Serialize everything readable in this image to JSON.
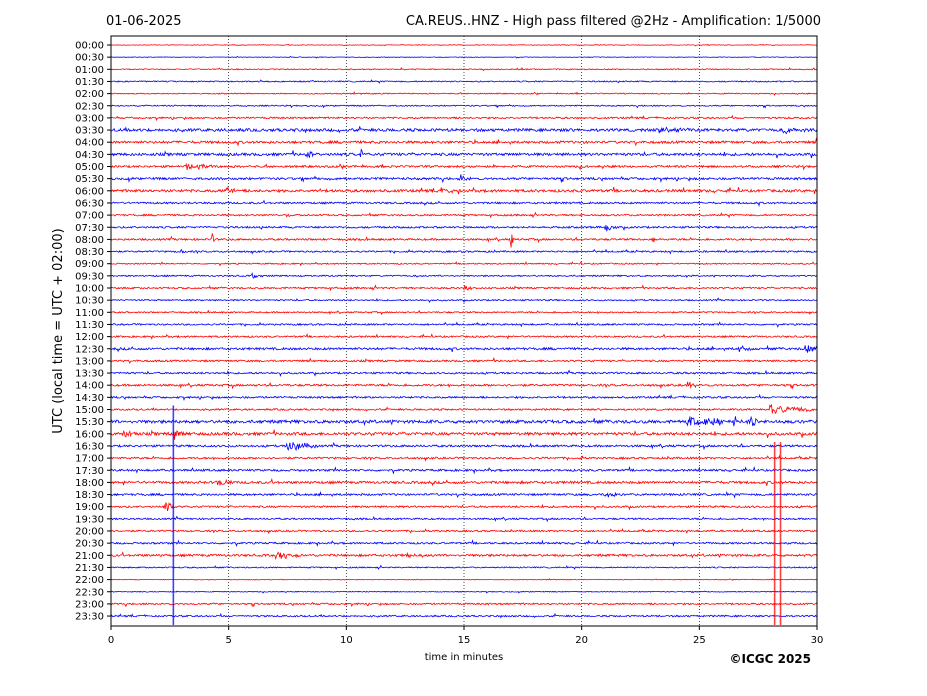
{
  "header": {
    "date": "01-06-2025",
    "title": "CA.REUS..HNZ - High pass filtered @2Hz - Amplification: 1/5000"
  },
  "footer": {
    "copyright": "©ICGC 2025"
  },
  "chart_data": {
    "type": "line",
    "xlabel": "time in minutes",
    "ylabel": "UTC (local time = UTC + 02:00)",
    "xlim": [
      0,
      30
    ],
    "xticks": [
      0,
      5,
      10,
      15,
      20,
      25,
      30
    ],
    "grid": "vertical dotted lines at each 5 minutes",
    "row_labels": [
      "00:00",
      "00:30",
      "01:00",
      "01:30",
      "02:00",
      "02:30",
      "03:00",
      "03:30",
      "04:00",
      "04:30",
      "05:00",
      "05:30",
      "06:00",
      "06:30",
      "07:00",
      "07:30",
      "08:00",
      "08:30",
      "09:00",
      "09:30",
      "10:00",
      "10:30",
      "11:00",
      "11:30",
      "12:00",
      "12:30",
      "13:00",
      "13:30",
      "14:00",
      "14:30",
      "15:00",
      "15:30",
      "16:00",
      "16:30",
      "17:00",
      "17:30",
      "18:00",
      "18:30",
      "19:00",
      "19:30",
      "20:00",
      "20:30",
      "21:00",
      "21:30",
      "22:00",
      "22:30",
      "23:00",
      "23:30"
    ],
    "colors": {
      "odd_rows": "#ff0000",
      "even_rows": "#0000ff"
    },
    "row_noise": [
      0.3,
      0.3,
      0.5,
      0.6,
      0.5,
      0.6,
      0.8,
      1.4,
      1.2,
      1.3,
      1.0,
      1.1,
      1.3,
      0.9,
      0.8,
      0.9,
      0.9,
      0.8,
      0.6,
      0.7,
      0.8,
      0.7,
      0.7,
      0.8,
      0.8,
      1.1,
      0.9,
      0.9,
      1.0,
      0.9,
      0.8,
      1.5,
      1.4,
      1.0,
      0.9,
      1.0,
      1.2,
      1.0,
      0.9,
      0.8,
      0.8,
      0.9,
      1.1,
      0.6,
      0.3,
      0.4,
      0.8,
      0.8
    ],
    "events": [
      {
        "row": "03:30",
        "minute": 23.3,
        "amp": 4,
        "dur": 1.2
      },
      {
        "row": "03:30",
        "minute": 28.6,
        "amp": 3,
        "dur": 1.3
      },
      {
        "row": "04:30",
        "minute": 8.3,
        "amp": 4,
        "dur": 0.5
      },
      {
        "row": "04:30",
        "minute": 10.6,
        "amp": 5,
        "dur": 0.2
      },
      {
        "row": "05:00",
        "minute": 3.2,
        "amp": 3,
        "dur": 1.5
      },
      {
        "row": "05:30",
        "minute": 14.8,
        "amp": 4,
        "dur": 0.6
      },
      {
        "row": "06:00",
        "minute": 4.9,
        "amp": 4,
        "dur": 0.6
      },
      {
        "row": "06:00",
        "minute": 14.0,
        "amp": 4,
        "dur": 0.5
      },
      {
        "row": "07:00",
        "minute": 7.5,
        "amp": 3,
        "dur": 0.3
      },
      {
        "row": "07:30",
        "minute": 21.0,
        "amp": 4,
        "dur": 0.5
      },
      {
        "row": "08:00",
        "minute": 17.0,
        "amp": 10,
        "dur": 0.1
      },
      {
        "row": "08:00",
        "minute": 4.3,
        "amp": 8,
        "dur": 0.1
      },
      {
        "row": "08:00",
        "minute": 23.0,
        "amp": 3,
        "dur": 0.3
      },
      {
        "row": "08:30",
        "minute": 2.9,
        "amp": 3,
        "dur": 0.3
      },
      {
        "row": "09:30",
        "minute": 6.0,
        "amp": 3,
        "dur": 0.5
      },
      {
        "row": "10:00",
        "minute": 15.0,
        "amp": 3,
        "dur": 0.5
      },
      {
        "row": "12:30",
        "minute": 26.7,
        "amp": 4,
        "dur": 0.5
      },
      {
        "row": "12:30",
        "minute": 29.5,
        "amp": 5,
        "dur": 0.5
      },
      {
        "row": "14:00",
        "minute": 24.5,
        "amp": 3,
        "dur": 0.5
      },
      {
        "row": "15:00",
        "minute": 28.0,
        "amp": 5,
        "dur": 2.0
      },
      {
        "row": "15:30",
        "minute": 24.5,
        "amp": 5,
        "dur": 3.0
      },
      {
        "row": "15:30",
        "minute": 27.2,
        "amp": 9,
        "dur": 0.3
      },
      {
        "row": "16:00",
        "minute": 0.5,
        "amp": 4,
        "dur": 0.6
      },
      {
        "row": "16:00",
        "minute": 2.7,
        "amp": 5,
        "dur": 0.4
      },
      {
        "row": "16:30",
        "minute": 7.5,
        "amp": 7,
        "dur": 1.3
      },
      {
        "row": "18:00",
        "minute": 4.5,
        "amp": 5,
        "dur": 0.6
      },
      {
        "row": "18:30",
        "minute": 21.0,
        "amp": 5,
        "dur": 0.5
      },
      {
        "row": "19:00",
        "minute": 2.3,
        "amp": 5,
        "dur": 0.5
      },
      {
        "row": "21:00",
        "minute": 7.0,
        "amp": 5,
        "dur": 1.0
      },
      {
        "row": "21:00",
        "minute": 12.6,
        "amp": 4,
        "dur": 0.4
      }
    ],
    "spikes": [
      {
        "from_row": "15:00",
        "to_row": "23:30",
        "minute": 2.65,
        "color": "#0000ff"
      },
      {
        "from_row": "16:30",
        "to_row": "23:30",
        "minute": 28.2,
        "color": "#ff0000"
      },
      {
        "from_row": "16:30",
        "to_row": "23:30",
        "minute": 28.45,
        "color": "#ff0000"
      }
    ]
  }
}
